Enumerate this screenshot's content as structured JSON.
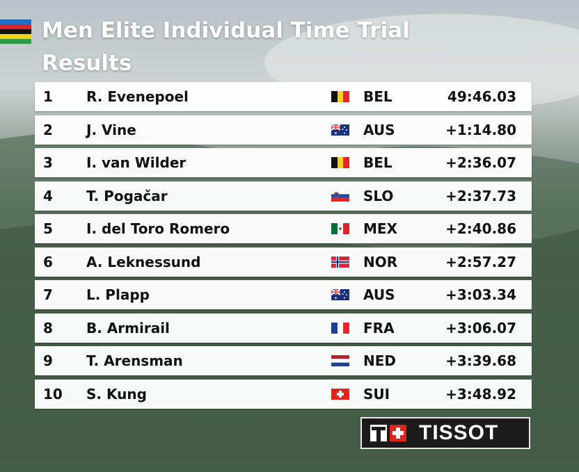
{
  "header": {
    "title": "Men Elite Individual Time Trial",
    "subtitle": "Results"
  },
  "table": {
    "rows": [
      [
        "1",
        "R. Evenepoel",
        "BEL",
        "49:46.03"
      ],
      [
        "2",
        "J. Vine",
        "AUS",
        "+1:14.80"
      ],
      [
        "3",
        "I. van Wilder",
        "BEL",
        "+2:36.07"
      ],
      [
        "4",
        "T. Pogačar",
        "SLO",
        "+2:37.73"
      ],
      [
        "5",
        "I. del Toro Romero",
        "MEX",
        "+2:40.86"
      ],
      [
        "6",
        "A. Leknessund",
        "NOR",
        "+2:57.27"
      ],
      [
        "7",
        "L. Plapp",
        "AUS",
        "+3:03.34"
      ],
      [
        "8",
        "B. Armirail",
        "FRA",
        "+3:06.07"
      ],
      [
        "9",
        "T. Arensman",
        "NED",
        "+3:39.68"
      ],
      [
        "10",
        "S. Kung",
        "SUI",
        "+3:48.92"
      ]
    ]
  },
  "sponsor": "TISSOT"
}
